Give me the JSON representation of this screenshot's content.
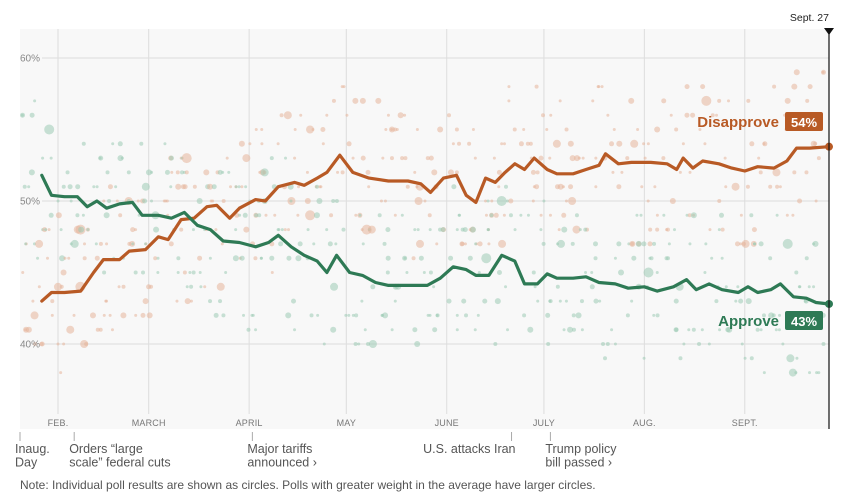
{
  "chart_data": {
    "type": "line",
    "title": "",
    "xlabel": "",
    "ylabel": "",
    "ylim": [
      33,
      63
    ],
    "x_range": [
      "2025-01-20",
      "2025-09-27"
    ],
    "grid": true,
    "y_ticks": [
      {
        "value": 60,
        "label": "60%"
      },
      {
        "value": 50,
        "label": "50%"
      },
      {
        "value": 40,
        "label": "40%"
      }
    ],
    "x_ticks": [
      {
        "date": "2025-02-01",
        "label": "FEB."
      },
      {
        "date": "2025-03-01",
        "label": "MARCH"
      },
      {
        "date": "2025-04-01",
        "label": "APRIL"
      },
      {
        "date": "2025-05-01",
        "label": "MAY"
      },
      {
        "date": "2025-06-01",
        "label": "JUNE"
      },
      {
        "date": "2025-07-01",
        "label": "JULY"
      },
      {
        "date": "2025-08-01",
        "label": "AUG."
      },
      {
        "date": "2025-09-01",
        "label": "SEPT."
      }
    ],
    "end_marker": {
      "date": "2025-09-27",
      "label": "Sept. 27"
    },
    "series": [
      {
        "name": "Disapprove",
        "final_label": "54%",
        "color": "#b85a25",
        "points": [
          [
            "2025-01-27",
            43.0
          ],
          [
            "2025-01-30",
            43.6
          ],
          [
            "2025-02-03",
            43.6
          ],
          [
            "2025-02-08",
            43.7
          ],
          [
            "2025-02-12",
            45.0
          ],
          [
            "2025-02-15",
            45.9
          ],
          [
            "2025-02-20",
            45.9
          ],
          [
            "2025-02-23",
            46.5
          ],
          [
            "2025-02-28",
            46.6
          ],
          [
            "2025-03-04",
            47.5
          ],
          [
            "2025-03-07",
            47.3
          ],
          [
            "2025-03-11",
            48.7
          ],
          [
            "2025-03-15",
            48.8
          ],
          [
            "2025-03-19",
            49.6
          ],
          [
            "2025-03-22",
            49.7
          ],
          [
            "2025-03-26",
            48.8
          ],
          [
            "2025-03-29",
            49.5
          ],
          [
            "2025-04-03",
            50.1
          ],
          [
            "2025-04-06",
            50.0
          ],
          [
            "2025-04-10",
            51.0
          ],
          [
            "2025-04-15",
            51.3
          ],
          [
            "2025-04-18",
            51.1
          ],
          [
            "2025-04-22",
            51.6
          ],
          [
            "2025-04-25",
            52.0
          ],
          [
            "2025-04-29",
            53.2
          ],
          [
            "2025-05-03",
            52.0
          ],
          [
            "2025-05-08",
            51.6
          ],
          [
            "2025-05-14",
            51.4
          ],
          [
            "2025-05-20",
            51.4
          ],
          [
            "2025-05-24",
            51.2
          ],
          [
            "2025-05-27",
            50.6
          ],
          [
            "2025-05-31",
            51.6
          ],
          [
            "2025-06-04",
            51.8
          ],
          [
            "2025-06-07",
            50.4
          ],
          [
            "2025-06-10",
            49.9
          ],
          [
            "2025-06-13",
            51.6
          ],
          [
            "2025-06-16",
            51.3
          ],
          [
            "2025-06-19",
            52.0
          ],
          [
            "2025-06-22",
            52.6
          ],
          [
            "2025-06-25",
            52.2
          ],
          [
            "2025-06-28",
            53.0
          ],
          [
            "2025-07-02",
            52.2
          ],
          [
            "2025-07-05",
            51.9
          ],
          [
            "2025-07-10",
            51.9
          ],
          [
            "2025-07-14",
            52.2
          ],
          [
            "2025-07-18",
            52.5
          ],
          [
            "2025-07-20",
            53.3
          ],
          [
            "2025-07-24",
            52.6
          ],
          [
            "2025-07-28",
            52.7
          ],
          [
            "2025-08-03",
            52.7
          ],
          [
            "2025-08-08",
            52.6
          ],
          [
            "2025-08-11",
            52.2
          ],
          [
            "2025-08-13",
            53.0
          ],
          [
            "2025-08-16",
            52.3
          ],
          [
            "2025-08-19",
            52.8
          ],
          [
            "2025-08-24",
            52.6
          ],
          [
            "2025-08-28",
            52.3
          ],
          [
            "2025-09-01",
            52.1
          ],
          [
            "2025-09-05",
            52.4
          ],
          [
            "2025-09-10",
            52.3
          ],
          [
            "2025-09-14",
            52.8
          ],
          [
            "2025-09-17",
            53.7
          ],
          [
            "2025-09-21",
            53.7
          ],
          [
            "2025-09-27",
            53.8
          ]
        ]
      },
      {
        "name": "Approve",
        "final_label": "43%",
        "color": "#2e7a55",
        "points": [
          [
            "2025-01-27",
            51.8
          ],
          [
            "2025-01-30",
            50.4
          ],
          [
            "2025-02-03",
            50.3
          ],
          [
            "2025-02-07",
            50.3
          ],
          [
            "2025-02-10",
            49.6
          ],
          [
            "2025-02-13",
            50.0
          ],
          [
            "2025-02-16",
            49.5
          ],
          [
            "2025-02-20",
            49.8
          ],
          [
            "2025-02-24",
            49.9
          ],
          [
            "2025-02-27",
            49.0
          ],
          [
            "2025-03-04",
            49.0
          ],
          [
            "2025-03-08",
            48.8
          ],
          [
            "2025-03-12",
            49.2
          ],
          [
            "2025-03-16",
            48.3
          ],
          [
            "2025-03-20",
            48.0
          ],
          [
            "2025-03-24",
            47.2
          ],
          [
            "2025-03-29",
            47.1
          ],
          [
            "2025-04-03",
            46.8
          ],
          [
            "2025-04-07",
            47.1
          ],
          [
            "2025-04-10",
            47.6
          ],
          [
            "2025-04-14",
            46.8
          ],
          [
            "2025-04-18",
            46.2
          ],
          [
            "2025-04-22",
            45.8
          ],
          [
            "2025-04-25",
            45.0
          ],
          [
            "2025-04-28",
            46.2
          ],
          [
            "2025-05-02",
            45.0
          ],
          [
            "2025-05-06",
            44.8
          ],
          [
            "2025-05-10",
            44.3
          ],
          [
            "2025-05-14",
            44.1
          ],
          [
            "2025-05-20",
            44.1
          ],
          [
            "2025-05-26",
            44.1
          ],
          [
            "2025-05-30",
            44.6
          ],
          [
            "2025-06-03",
            45.4
          ],
          [
            "2025-06-07",
            45.2
          ],
          [
            "2025-06-10",
            44.8
          ],
          [
            "2025-06-14",
            44.8
          ],
          [
            "2025-06-18",
            46.2
          ],
          [
            "2025-06-22",
            45.8
          ],
          [
            "2025-06-25",
            44.2
          ],
          [
            "2025-06-29",
            44.2
          ],
          [
            "2025-07-02",
            44.9
          ],
          [
            "2025-07-05",
            44.6
          ],
          [
            "2025-07-10",
            44.6
          ],
          [
            "2025-07-14",
            44.7
          ],
          [
            "2025-07-18",
            44.3
          ],
          [
            "2025-07-23",
            44.2
          ],
          [
            "2025-07-27",
            43.9
          ],
          [
            "2025-08-01",
            44.0
          ],
          [
            "2025-08-05",
            43.7
          ],
          [
            "2025-08-10",
            44.0
          ],
          [
            "2025-08-14",
            44.5
          ],
          [
            "2025-08-17",
            43.8
          ],
          [
            "2025-08-21",
            44.2
          ],
          [
            "2025-08-25",
            43.8
          ],
          [
            "2025-08-30",
            43.6
          ],
          [
            "2025-09-02",
            44.0
          ],
          [
            "2025-09-05",
            43.6
          ],
          [
            "2025-09-09",
            43.8
          ],
          [
            "2025-09-12",
            44.2
          ],
          [
            "2025-09-16",
            43.3
          ],
          [
            "2025-09-20",
            43.2
          ],
          [
            "2025-09-23",
            42.9
          ],
          [
            "2025-09-27",
            42.8
          ]
        ]
      }
    ],
    "poll_dots": {
      "description": "Individual poll results shown as faint circles; larger circles = greater weight",
      "approve_color": "#9ccab4",
      "disapprove_color": "#e6b49a"
    },
    "annotations": [
      {
        "date": "2025-01-20",
        "lines": [
          "Inaug.",
          "Day"
        ],
        "link": false
      },
      {
        "date": "2025-02-06",
        "lines": [
          "Orders “large",
          "scale” federal cuts"
        ],
        "link": false
      },
      {
        "date": "2025-04-02",
        "lines": [
          "Major tariffs",
          "announced ›"
        ],
        "link": true
      },
      {
        "date": "2025-06-21",
        "lines": [
          "U.S. attacks Iran"
        ],
        "link": false
      },
      {
        "date": "2025-07-03",
        "lines": [
          "Trump policy",
          "bill passed ›"
        ],
        "link": true
      }
    ]
  },
  "note": "Note: Individual poll results are shown as circles. Polls with greater weight in the average have larger circles."
}
